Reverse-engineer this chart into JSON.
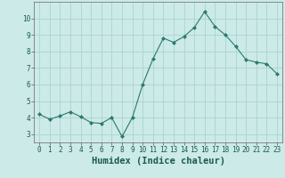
{
  "x": [
    0,
    1,
    2,
    3,
    4,
    5,
    6,
    7,
    8,
    9,
    10,
    11,
    12,
    13,
    14,
    15,
    16,
    17,
    18,
    19,
    20,
    21,
    22,
    23
  ],
  "y": [
    4.2,
    3.9,
    4.1,
    4.35,
    4.05,
    3.7,
    3.65,
    4.0,
    2.85,
    4.0,
    6.0,
    7.55,
    8.8,
    8.55,
    8.9,
    9.45,
    10.4,
    9.5,
    9.0,
    8.3,
    7.5,
    7.35,
    7.25,
    6.65
  ],
  "line_color": "#2a7a6e",
  "marker": "D",
  "marker_size": 2.0,
  "bg_color": "#cceae8",
  "grid_color": "#aad4d0",
  "xlabel": "Humidex (Indice chaleur)",
  "ylim": [
    2.5,
    11.0
  ],
  "xlim": [
    -0.5,
    23.5
  ],
  "yticks": [
    3,
    4,
    5,
    6,
    7,
    8,
    9,
    10
  ],
  "xticks": [
    0,
    1,
    2,
    3,
    4,
    5,
    6,
    7,
    8,
    9,
    10,
    11,
    12,
    13,
    14,
    15,
    16,
    17,
    18,
    19,
    20,
    21,
    22,
    23
  ],
  "tick_fontsize": 5.5,
  "xlabel_fontsize": 7.5
}
